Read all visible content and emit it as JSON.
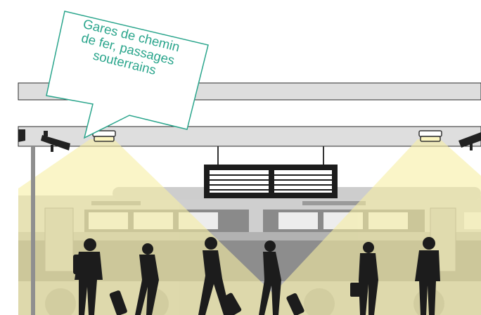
{
  "callout": {
    "lines": [
      "Gares de chemin",
      "de fer, passages",
      "souterrains"
    ]
  },
  "colors": {
    "accent": "#2aa58c",
    "light_beam": "#f6eea3",
    "silhouette": "#1c1c1c",
    "structure": "#dcdcdc",
    "train": "#c8c8c8"
  },
  "icons": [
    "security-camera-icon",
    "ceiling-light-icon",
    "departure-board-icon",
    "person-silhouette-icon",
    "suitcase-icon"
  ]
}
